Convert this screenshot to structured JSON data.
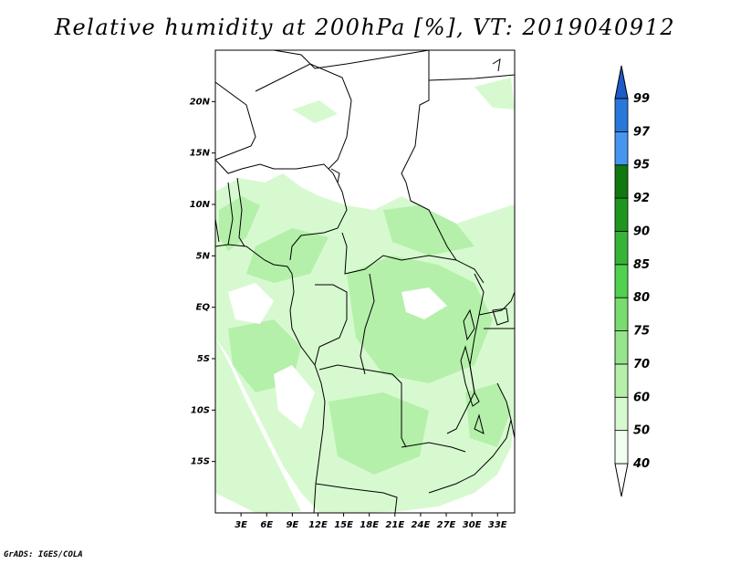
{
  "title": "Relative humidity at 200hPa [%], VT: 2019040912",
  "credit": "GrADS: IGES/COLA",
  "map": {
    "lon_range": [
      0,
      35
    ],
    "lat_range": [
      -20,
      25
    ],
    "lat_ticks": [
      {
        "value": 20,
        "label": "20N"
      },
      {
        "value": 15,
        "label": "15N"
      },
      {
        "value": 10,
        "label": "10N"
      },
      {
        "value": 5,
        "label": "5N"
      },
      {
        "value": 0,
        "label": "EQ"
      },
      {
        "value": -5,
        "label": "5S"
      },
      {
        "value": -10,
        "label": "10S"
      },
      {
        "value": -15,
        "label": "15S"
      }
    ],
    "lon_ticks": [
      {
        "value": 3,
        "label": "3E"
      },
      {
        "value": 6,
        "label": "6E"
      },
      {
        "value": 9,
        "label": "9E"
      },
      {
        "value": 12,
        "label": "12E"
      },
      {
        "value": 15,
        "label": "15E"
      },
      {
        "value": 18,
        "label": "18E"
      },
      {
        "value": 21,
        "label": "21E"
      },
      {
        "value": 24,
        "label": "24E"
      },
      {
        "value": 27,
        "label": "27E"
      },
      {
        "value": 30,
        "label": "30E"
      },
      {
        "value": 33,
        "label": "33E"
      }
    ]
  },
  "colorbar": {
    "levels": [
      "40",
      "50",
      "60",
      "70",
      "75",
      "80",
      "85",
      "90",
      "92",
      "95",
      "97",
      "99"
    ],
    "colors": [
      "#f0fff0",
      "#d7f9d0",
      "#b4f0aa",
      "#96e48c",
      "#78dc6e",
      "#50d250",
      "#37b437",
      "#1e961e",
      "#0f780f",
      "#4696f0",
      "#2878dc",
      "#1e5ac8"
    ]
  }
}
